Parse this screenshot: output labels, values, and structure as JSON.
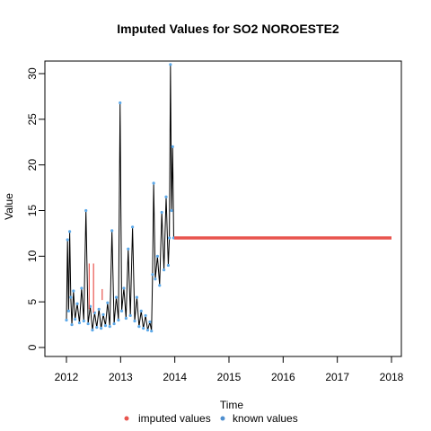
{
  "chart_data": {
    "type": "line",
    "title": "Imputed Values for  SO2 NOROESTE2",
    "xlabel": "Time",
    "ylabel": "Value",
    "xlim": [
      2012,
      2018
    ],
    "ylim": [
      0,
      30
    ],
    "x_ticks": [
      "2012",
      "2013",
      "2014",
      "2015",
      "2016",
      "2017",
      "2018"
    ],
    "y_ticks": [
      "0",
      "5",
      "10",
      "15",
      "20",
      "25",
      "30"
    ],
    "legend": {
      "placement": "bottom",
      "entries": [
        {
          "label": "imputed values",
          "color": "#E8544E"
        },
        {
          "label": "known values",
          "color": "#4F8FCF"
        }
      ]
    },
    "series": [
      {
        "name": "known values",
        "color": "#5DA9E9",
        "points": [
          [
            2012.0,
            3.0
          ],
          [
            2012.02,
            11.8
          ],
          [
            2012.04,
            4.0
          ],
          [
            2012.06,
            12.7
          ],
          [
            2012.08,
            5.5
          ],
          [
            2012.1,
            2.5
          ],
          [
            2012.13,
            6.2
          ],
          [
            2012.16,
            3.1
          ],
          [
            2012.2,
            4.8
          ],
          [
            2012.24,
            2.7
          ],
          [
            2012.28,
            6.5
          ],
          [
            2012.32,
            2.9
          ],
          [
            2012.36,
            15.0
          ],
          [
            2012.4,
            2.6
          ],
          [
            2012.44,
            4.5
          ],
          [
            2012.48,
            1.9
          ],
          [
            2012.52,
            3.8
          ],
          [
            2012.56,
            2.2
          ],
          [
            2012.6,
            4.2
          ],
          [
            2012.64,
            2.1
          ],
          [
            2012.68,
            3.6
          ],
          [
            2012.72,
            2.4
          ],
          [
            2012.76,
            4.9
          ],
          [
            2012.8,
            2.3
          ],
          [
            2012.84,
            12.8
          ],
          [
            2012.88,
            2.6
          ],
          [
            2012.92,
            5.5
          ],
          [
            2012.96,
            3.0
          ],
          [
            2012.99,
            26.8
          ],
          [
            2013.02,
            4.0
          ],
          [
            2013.06,
            6.5
          ],
          [
            2013.1,
            3.2
          ],
          [
            2013.14,
            10.8
          ],
          [
            2013.18,
            3.5
          ],
          [
            2013.22,
            13.2
          ],
          [
            2013.26,
            2.9
          ],
          [
            2013.3,
            5.5
          ],
          [
            2013.34,
            2.3
          ],
          [
            2013.38,
            4.0
          ],
          [
            2013.42,
            2.1
          ],
          [
            2013.46,
            3.5
          ],
          [
            2013.5,
            1.9
          ],
          [
            2013.54,
            2.8
          ],
          [
            2013.57,
            1.8
          ],
          [
            2013.59,
            8.0
          ],
          [
            2013.61,
            18.0
          ],
          [
            2013.64,
            7.5
          ],
          [
            2013.68,
            10.0
          ],
          [
            2013.72,
            6.8
          ],
          [
            2013.76,
            14.8
          ],
          [
            2013.8,
            8.5
          ],
          [
            2013.84,
            16.5
          ],
          [
            2013.88,
            9.0
          ],
          [
            2013.9,
            12.0
          ],
          [
            2013.92,
            31.0
          ],
          [
            2013.94,
            15.0
          ],
          [
            2013.96,
            22.0
          ],
          [
            2013.98,
            12.0
          ]
        ]
      },
      {
        "name": "imputed values",
        "color": "#E8544E",
        "segments": [
          [
            [
              2012.42,
              9.2
            ],
            [
              2012.42,
              4.2
            ]
          ],
          [
            [
              2012.5,
              9.2
            ],
            [
              2012.5,
              3.8
            ]
          ],
          [
            [
              2012.66,
              5.2
            ],
            [
              2012.66,
              6.4
            ]
          ],
          [
            [
              2013.99,
              12.0
            ],
            [
              2018.0,
              12.0
            ]
          ]
        ]
      }
    ]
  }
}
